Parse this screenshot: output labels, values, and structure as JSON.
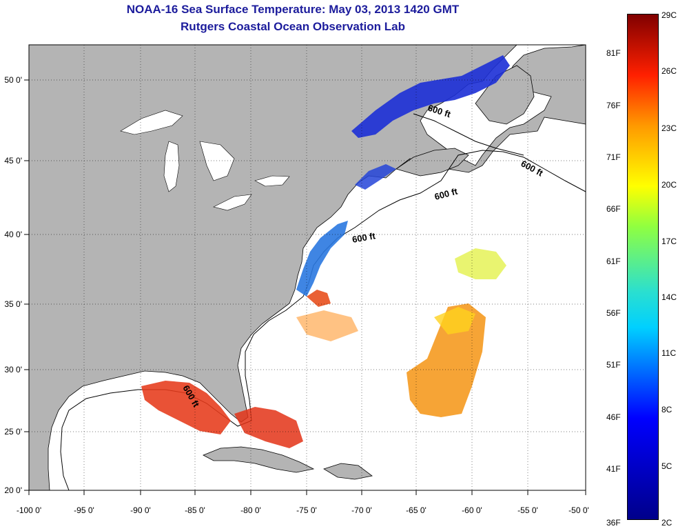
{
  "title": "NOAA-16 Sea Surface Temperature:  May 03, 2013 1420 GMT",
  "subtitle": "Rutgers Coastal Ocean Observation Lab",
  "map": {
    "lon_labels": [
      "-100 0'",
      "-95 0'",
      "-90 0'",
      "-85 0'",
      "-80 0'",
      "-75 0'",
      "-70 0'",
      "-65 0'",
      "-60 0'",
      "-55 0'",
      "-50 0'"
    ],
    "lat_labels": [
      "50 0'",
      "45 0'",
      "40 0'",
      "35 0'",
      "30 0'",
      "25 0'",
      "20 0'"
    ],
    "isobath_label": "600 ft",
    "land_color": "#b4b4b4",
    "ocean_color": "#ffffff",
    "grid": "dotted"
  },
  "colorbar": {
    "celsius": [
      "29C",
      "26C",
      "23C",
      "20C",
      "17C",
      "14C",
      "11C",
      "8C",
      "5C",
      "2C"
    ],
    "fahrenheit": [
      "81F",
      "76F",
      "71F",
      "66F",
      "61F",
      "56F",
      "51F",
      "46F",
      "41F",
      "36F"
    ]
  }
}
